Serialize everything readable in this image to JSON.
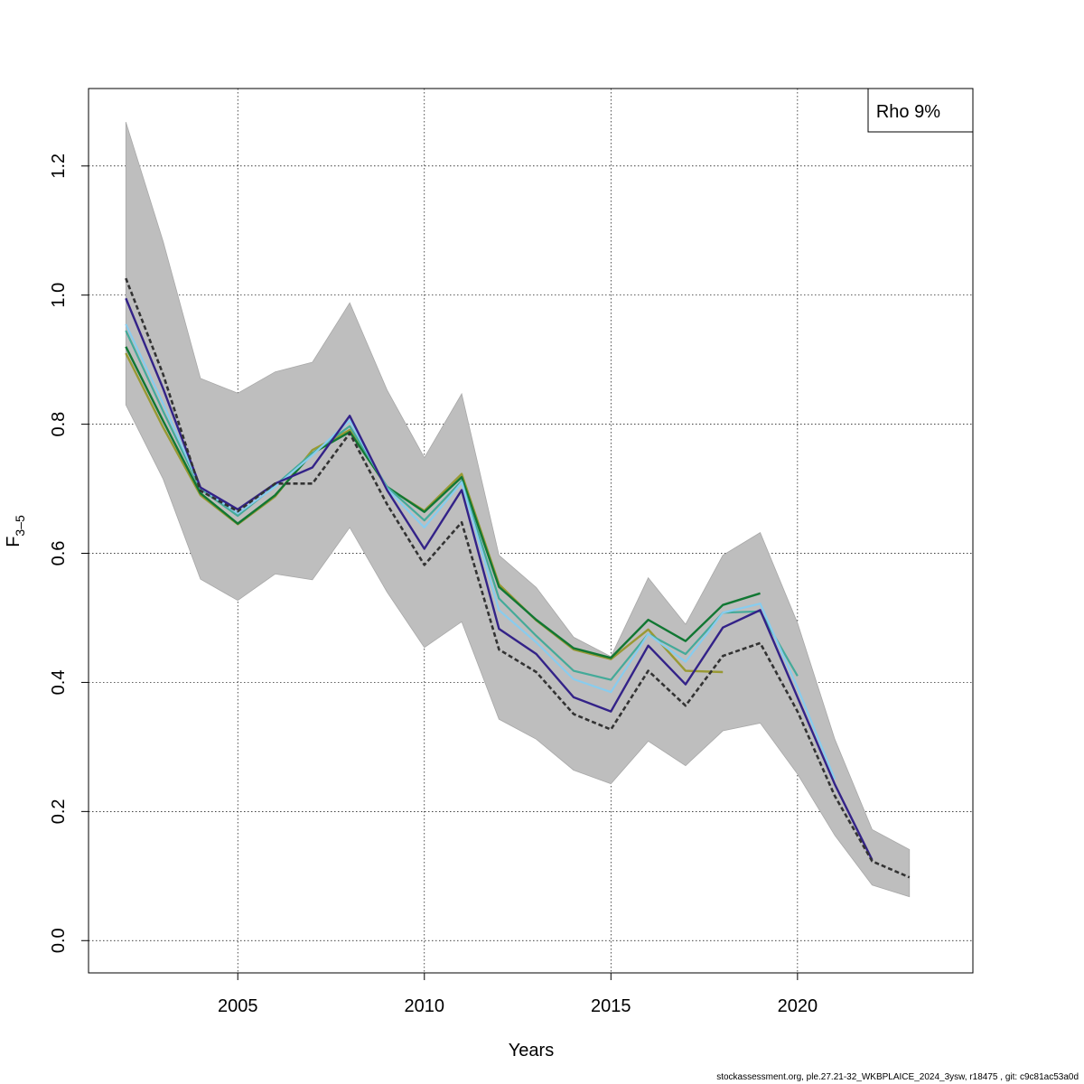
{
  "chart_data": {
    "type": "line",
    "xlabel": "Years",
    "ylabel": {
      "main": "F",
      "subscript": "3–5"
    },
    "xlim": [
      2001,
      2024.7
    ],
    "ylim": [
      -0.05,
      1.32
    ],
    "x_ticks": [
      2005,
      2010,
      2015,
      2020
    ],
    "y_ticks": [
      0.0,
      0.2,
      0.4,
      0.6,
      0.8,
      1.0,
      1.2
    ],
    "y_tick_labels": [
      "0.0",
      "0.2",
      "0.4",
      "0.6",
      "0.8",
      "1.0",
      "1.2"
    ],
    "grid": true,
    "legend": {
      "position": "top-right",
      "text": "Rho 9%"
    },
    "confidence_band": {
      "color": "#bebebe",
      "x": [
        2002,
        2003,
        2004,
        2005,
        2006,
        2007,
        2008,
        2009,
        2010,
        2011,
        2012,
        2013,
        2014,
        2015,
        2016,
        2017,
        2018,
        2019,
        2020,
        2021,
        2022,
        2023
      ],
      "lower": [
        0.83,
        0.715,
        0.56,
        0.527,
        0.568,
        0.559,
        0.64,
        0.54,
        0.454,
        0.494,
        0.343,
        0.312,
        0.264,
        0.243,
        0.309,
        0.271,
        0.325,
        0.337,
        0.258,
        0.163,
        0.086,
        0.068
      ],
      "upper": [
        1.268,
        1.083,
        0.871,
        0.848,
        0.881,
        0.896,
        0.988,
        0.853,
        0.748,
        0.847,
        0.597,
        0.547,
        0.47,
        0.44,
        0.562,
        0.49,
        0.597,
        0.632,
        0.492,
        0.312,
        0.172,
        0.141
      ]
    },
    "series": [
      {
        "color": "#333333",
        "dashed": true,
        "width": 2.6,
        "x": [
          2002,
          2003,
          2004,
          2005,
          2006,
          2007,
          2008,
          2009,
          2010,
          2011,
          2012,
          2013,
          2014,
          2015,
          2016,
          2017,
          2018,
          2019,
          2020,
          2021,
          2022,
          2023
        ],
        "values": [
          1.026,
          0.877,
          0.697,
          0.665,
          0.708,
          0.708,
          0.786,
          0.676,
          0.582,
          0.648,
          0.451,
          0.416,
          0.351,
          0.327,
          0.418,
          0.364,
          0.441,
          0.461,
          0.355,
          0.224,
          0.123,
          0.098
        ]
      },
      {
        "color": "#332288",
        "dashed": false,
        "width": 2.4,
        "x": [
          2002,
          2003,
          2004,
          2005,
          2006,
          2007,
          2008,
          2009,
          2010,
          2011,
          2012,
          2013,
          2014,
          2015,
          2016,
          2017,
          2018,
          2019,
          2020,
          2021,
          2022
        ],
        "values": [
          0.995,
          0.855,
          0.702,
          0.668,
          0.708,
          0.733,
          0.813,
          0.698,
          0.607,
          0.698,
          0.483,
          0.444,
          0.377,
          0.355,
          0.457,
          0.397,
          0.485,
          0.512,
          0.377,
          0.242,
          0.125
        ]
      },
      {
        "color": "#88ccee",
        "dashed": false,
        "width": 2.2,
        "x": [
          2002,
          2003,
          2004,
          2005,
          2006,
          2007,
          2008,
          2009,
          2010,
          2011,
          2012,
          2013,
          2014,
          2015,
          2016,
          2017,
          2018,
          2019,
          2020,
          2021
        ],
        "values": [
          0.955,
          0.832,
          0.702,
          0.662,
          0.703,
          0.752,
          0.806,
          0.7,
          0.64,
          0.71,
          0.512,
          0.462,
          0.405,
          0.385,
          0.475,
          0.432,
          0.508,
          0.522,
          0.392,
          0.25
        ]
      },
      {
        "color": "#44aa99",
        "dashed": false,
        "width": 2.2,
        "x": [
          2002,
          2003,
          2004,
          2005,
          2006,
          2007,
          2008,
          2009,
          2010,
          2011,
          2012,
          2013,
          2014,
          2015,
          2016,
          2017,
          2018,
          2019,
          2020
        ],
        "values": [
          0.945,
          0.82,
          0.7,
          0.658,
          0.705,
          0.755,
          0.797,
          0.703,
          0.651,
          0.712,
          0.53,
          0.472,
          0.418,
          0.404,
          0.475,
          0.444,
          0.508,
          0.51,
          0.41
        ]
      },
      {
        "color": "#117733",
        "dashed": false,
        "width": 2.4,
        "x": [
          2002,
          2003,
          2004,
          2005,
          2006,
          2007,
          2008,
          2009,
          2010,
          2011,
          2012,
          2013,
          2014,
          2015,
          2016,
          2017,
          2018,
          2019
        ],
        "values": [
          0.92,
          0.805,
          0.693,
          0.646,
          0.69,
          0.755,
          0.788,
          0.703,
          0.664,
          0.718,
          0.548,
          0.497,
          0.453,
          0.438,
          0.497,
          0.464,
          0.52,
          0.538
        ]
      },
      {
        "color": "#999933",
        "dashed": false,
        "width": 2.4,
        "x": [
          2002,
          2003,
          2004,
          2005,
          2006,
          2007,
          2008,
          2009,
          2010,
          2011,
          2012,
          2013,
          2014,
          2015,
          2016,
          2017,
          2018
        ],
        "values": [
          0.91,
          0.795,
          0.69,
          0.645,
          0.688,
          0.76,
          0.791,
          0.702,
          0.666,
          0.723,
          0.552,
          0.496,
          0.451,
          0.436,
          0.482,
          0.418,
          0.416
        ]
      }
    ]
  },
  "footer": "stockassessment.org, ple.27.21-32_WKBPLAICE_2024_3ysw, r18475 , git: c9c81ac53a0d"
}
